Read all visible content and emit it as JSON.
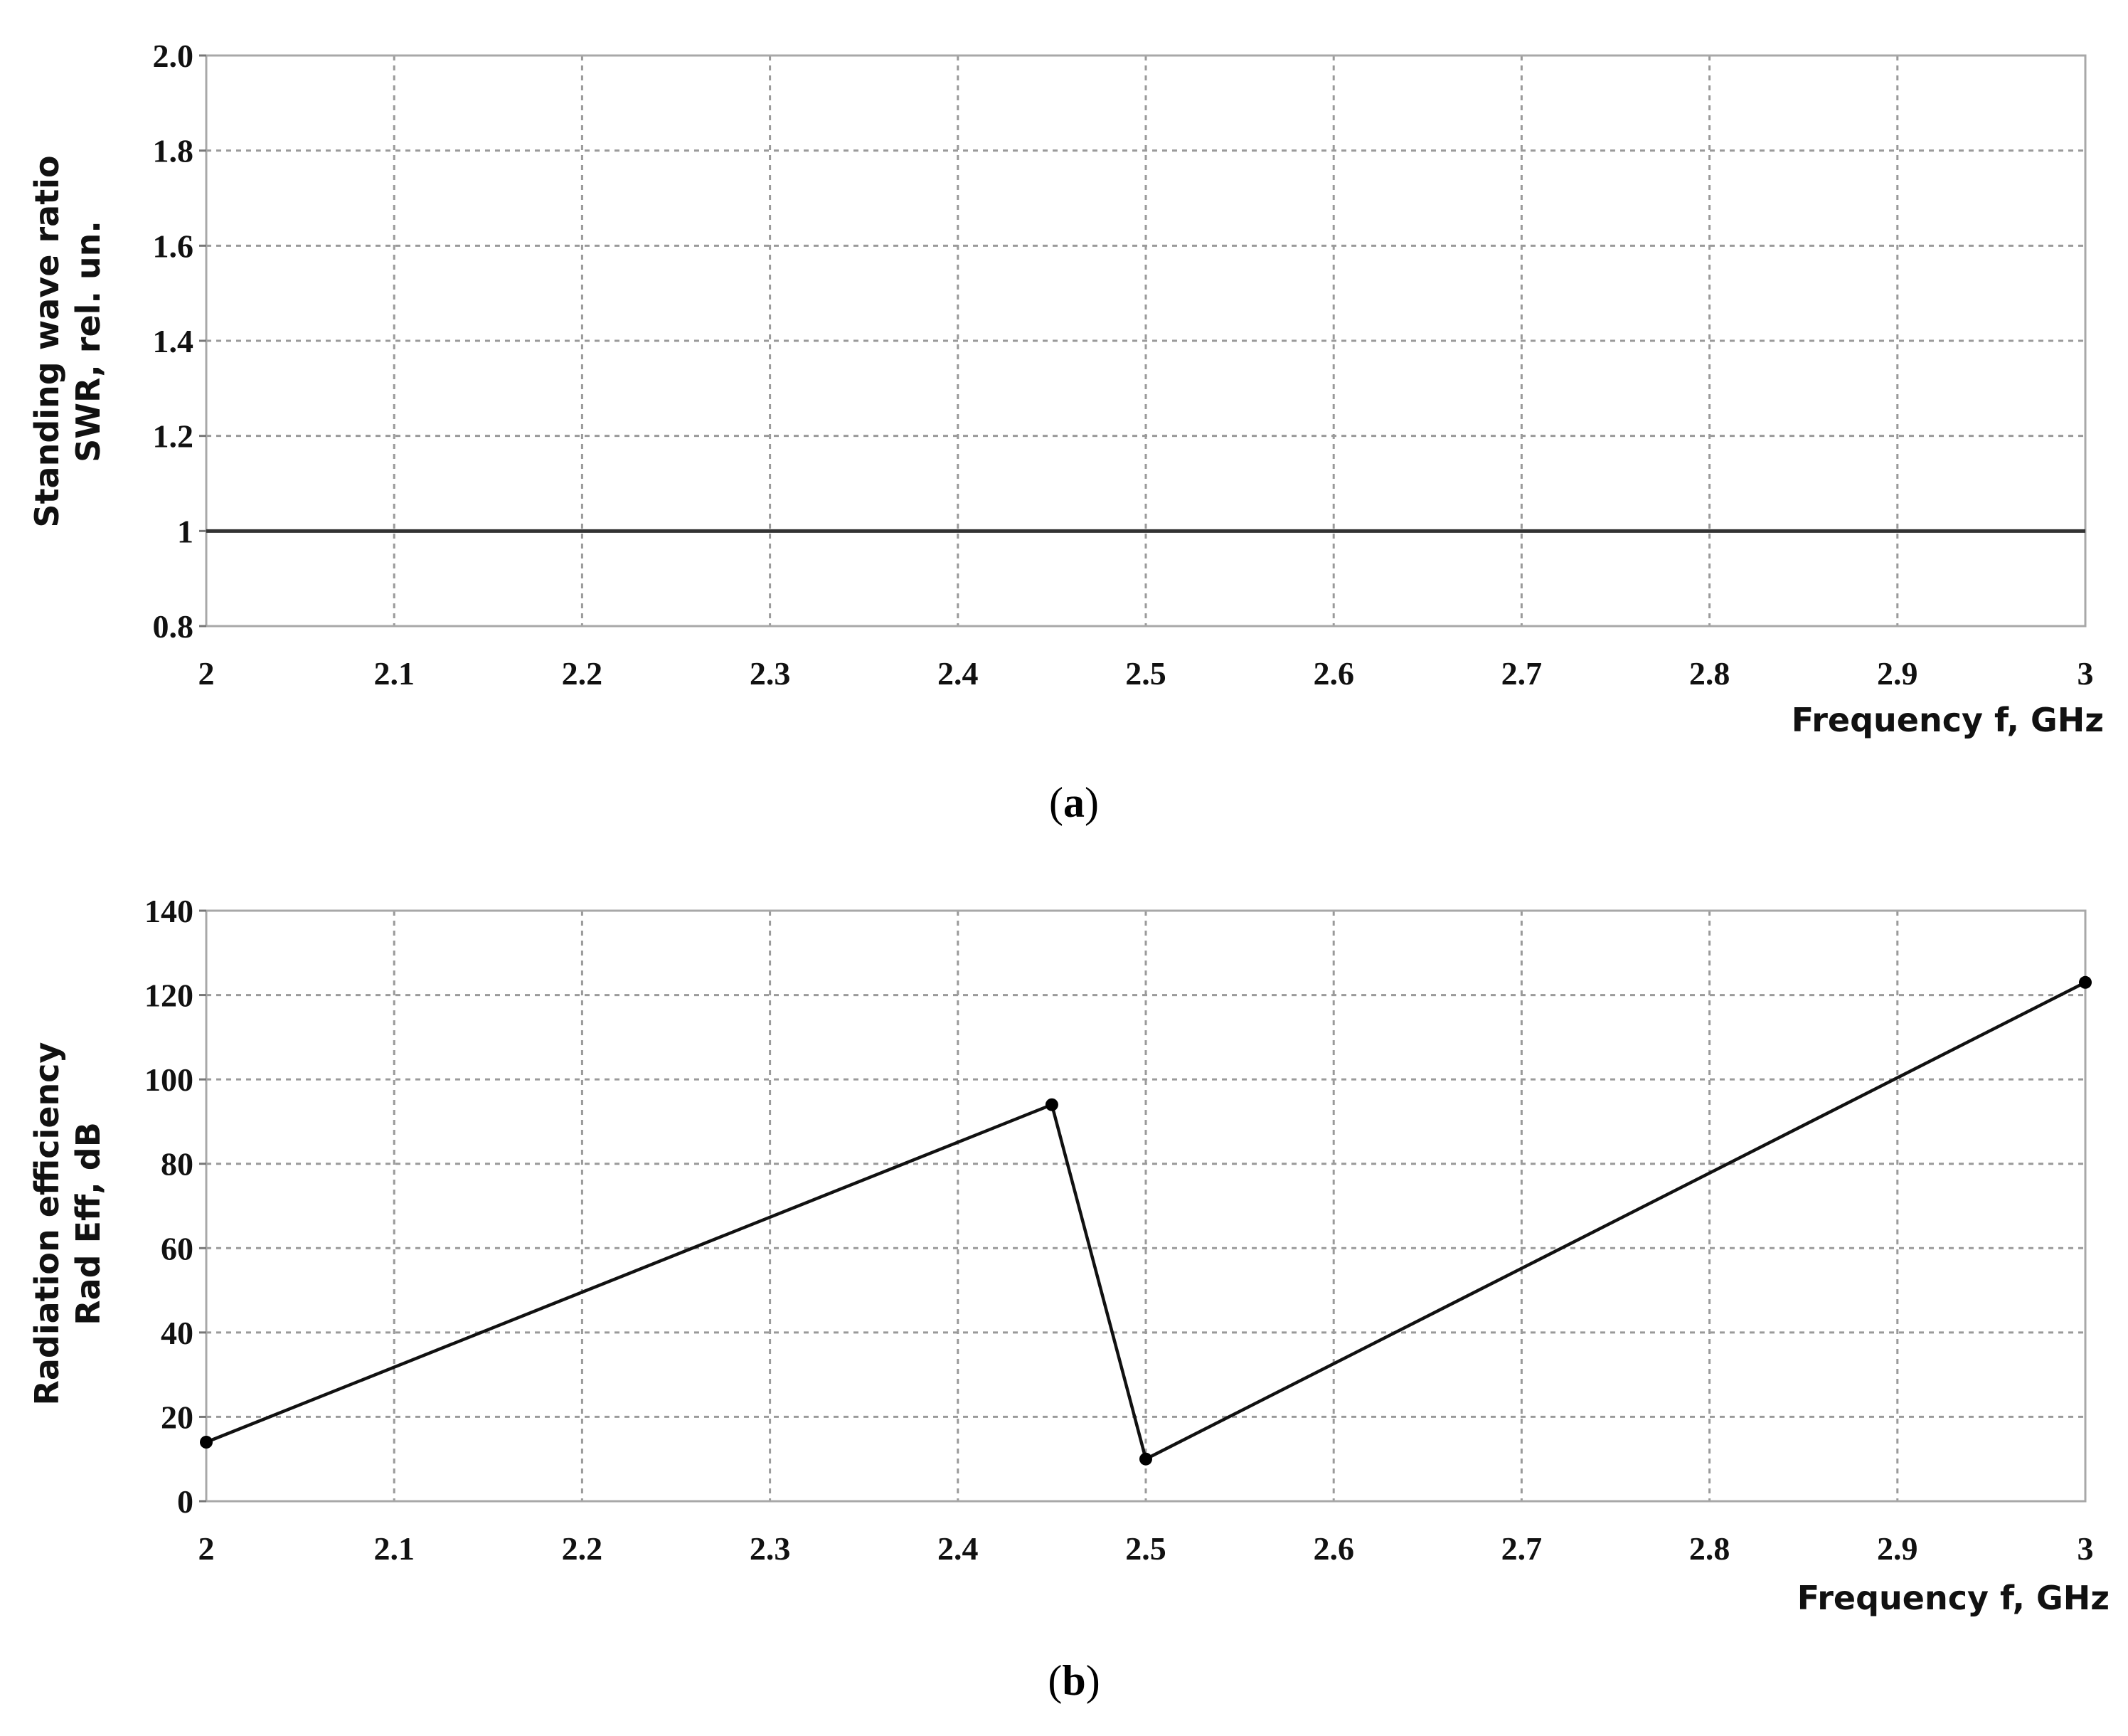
{
  "chart_data": [
    {
      "panel_label_open": "(",
      "panel_label_letter": "a",
      "panel_label_close": ")",
      "type": "line",
      "ylabel_line1": "Standing wave ratio",
      "ylabel_line2": "SWR, rel. un.",
      "xlabel": "Frequency f, GHz",
      "xlim": [
        2,
        3
      ],
      "ylim": [
        0.8,
        2.0
      ],
      "x_ticks": [
        "2",
        "2.1",
        "2.2",
        "2.3",
        "2.4",
        "2.5",
        "2.6",
        "2.7",
        "2.8",
        "2.9",
        "3"
      ],
      "y_ticks": [
        "2.0",
        "1.8",
        "1.6",
        "1.4",
        "1.2",
        "1",
        "0.8"
      ],
      "grid": true,
      "series": [
        {
          "x": [
            2,
            3
          ],
          "y": [
            1,
            1
          ],
          "markers": false
        }
      ]
    },
    {
      "panel_label_open": "(",
      "panel_label_letter": "b",
      "panel_label_close": ")",
      "type": "line",
      "ylabel_line1": "Radiation efficiency",
      "ylabel_line2": "Rad Eff, dB",
      "xlabel": "Frequency f, GHz",
      "xlim": [
        2,
        3
      ],
      "ylim": [
        0,
        140
      ],
      "x_ticks": [
        "2",
        "2.1",
        "2.2",
        "2.3",
        "2.4",
        "2.5",
        "2.6",
        "2.7",
        "2.8",
        "2.9",
        "3"
      ],
      "y_ticks": [
        "140",
        "120",
        "100",
        "80",
        "60",
        "40",
        "20",
        "0"
      ],
      "grid": true,
      "series": [
        {
          "x": [
            2.0,
            2.45,
            2.5,
            3.0
          ],
          "y": [
            14,
            94,
            10,
            123
          ],
          "markers": true
        }
      ]
    }
  ]
}
